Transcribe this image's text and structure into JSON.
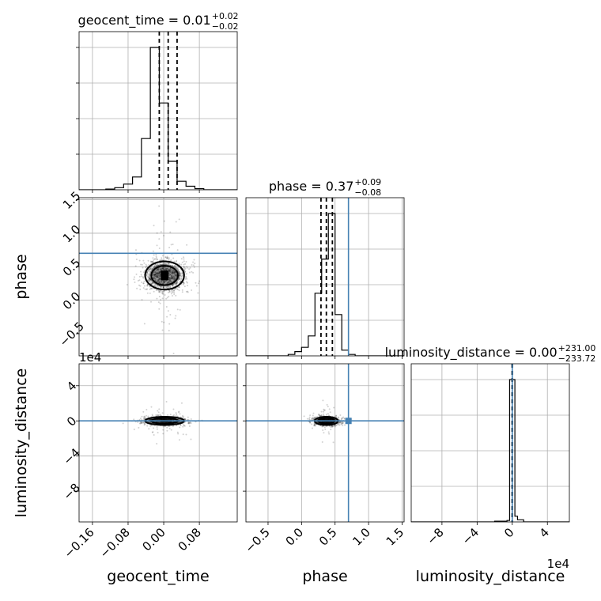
{
  "chart_data": {
    "type": "corner",
    "parameters": [
      "geocent_time",
      "phase",
      "luminosity_distance"
    ],
    "axis_labels": {
      "x": [
        "geocent_time",
        "phase",
        "luminosity_distance"
      ],
      "y": [
        "phase",
        "luminosity_distance"
      ]
    },
    "titles": [
      {
        "param": "geocent_time",
        "text": "geocent_time = 0.01",
        "plus": "+0.02",
        "minus": "−0.02"
      },
      {
        "param": "phase",
        "text": "phase = 0.37",
        "plus": "+0.09",
        "minus": "−0.08"
      },
      {
        "param": "luminosity_distance",
        "text": "luminosity_distance = 0.00",
        "plus": "+231.00",
        "minus": "−233.72"
      }
    ],
    "ranges": {
      "geocent_time": [
        -0.19,
        0.165
      ],
      "phase": [
        -0.83,
        1.53
      ],
      "luminosity_distance": [
        -115000,
        65000
      ]
    },
    "ticks": {
      "geocent_time": [
        {
          "v": -0.16,
          "label": "−0.16"
        },
        {
          "v": -0.08,
          "label": "−0.08"
        },
        {
          "v": 0.0,
          "label": "0.00"
        },
        {
          "v": 0.08,
          "label": "0.08"
        }
      ],
      "phase": [
        {
          "v": -0.5,
          "label": "−0.5"
        },
        {
          "v": 0.0,
          "label": "0.0"
        },
        {
          "v": 0.5,
          "label": "0.5"
        },
        {
          "v": 1.0,
          "label": "1.0"
        },
        {
          "v": 1.5,
          "label": "1.5"
        }
      ],
      "luminosity_distance": [
        {
          "v": -80000,
          "label": "−8"
        },
        {
          "v": -40000,
          "label": "−4"
        },
        {
          "v": 0,
          "label": "0"
        },
        {
          "v": 40000,
          "label": "4"
        }
      ]
    },
    "offset_text": "1e4",
    "grid": true,
    "truths": {
      "geocent_time": null,
      "phase": 0.7,
      "luminosity_distance": 0
    },
    "histograms": {
      "geocent_time": {
        "edges": [
          -0.19,
          -0.17,
          -0.15,
          -0.13,
          -0.11,
          -0.09,
          -0.07,
          -0.05,
          -0.03,
          -0.01,
          0.01,
          0.03,
          0.05,
          0.07,
          0.09,
          0.11,
          0.13,
          0.165
        ],
        "counts": [
          0,
          0,
          0,
          0.005,
          0.015,
          0.04,
          0.09,
          0.36,
          1.0,
          0.61,
          0.2,
          0.06,
          0.025,
          0.008,
          0,
          0,
          0
        ]
      },
      "phase": {
        "edges": [
          -0.83,
          -0.7,
          -0.6,
          -0.5,
          -0.4,
          -0.3,
          -0.2,
          -0.1,
          0.0,
          0.1,
          0.2,
          0.3,
          0.4,
          0.5,
          0.6,
          0.7,
          0.8,
          0.9,
          1.0,
          1.53
        ],
        "counts": [
          0,
          0,
          0,
          0,
          0,
          0,
          0.01,
          0.03,
          0.06,
          0.14,
          0.44,
          0.68,
          1.0,
          0.29,
          0.04,
          0.01,
          0,
          0,
          0
        ]
      },
      "luminosity_distance": {
        "edges": [
          -115000,
          -20000,
          -6000,
          -3000,
          3000,
          6000,
          13000,
          65000
        ],
        "counts": [
          0,
          0.005,
          0.01,
          1.0,
          0.04,
          0.015,
          0
        ]
      }
    },
    "quantile_lines": {
      "geocent_time": [
        -0.01,
        0.01,
        0.03
      ],
      "phase": [
        0.29,
        0.37,
        0.46
      ],
      "luminosity_distance": [
        -233.72,
        0,
        231
      ]
    },
    "scatter_2d": [
      {
        "x": "geocent_time",
        "y": "phase",
        "center": [
          0.002,
          0.37
        ],
        "sigma": [
          0.025,
          0.12
        ],
        "n": 1200
      },
      {
        "x": "geocent_time",
        "y": "luminosity_distance",
        "center": [
          0.002,
          0
        ],
        "sigma": [
          0.025,
          2500
        ],
        "n": 1000
      },
      {
        "x": "phase",
        "y": "luminosity_distance",
        "center": [
          0.37,
          0
        ],
        "sigma": [
          0.1,
          2500
        ],
        "n": 1000
      }
    ],
    "colors": {
      "truth": "#4682b4",
      "hist": "#000000",
      "grid": "#b0b0b0",
      "points": "#000000"
    }
  }
}
